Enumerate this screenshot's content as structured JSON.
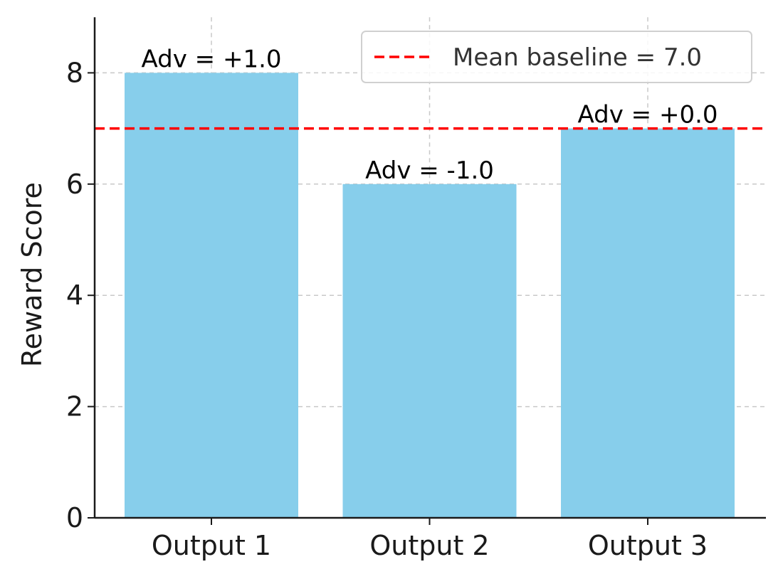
{
  "chart_data": {
    "type": "bar",
    "categories": [
      "Output 1",
      "Output 2",
      "Output 3"
    ],
    "values": [
      8,
      6,
      7
    ],
    "data_labels": [
      "Adv = +1.0",
      "Adv = -1.0",
      "Adv = +0.0"
    ],
    "title": "",
    "xlabel": "",
    "ylabel": "Reward Score",
    "ylim": [
      0,
      9
    ],
    "yticks": [
      0,
      2,
      4,
      6,
      8
    ],
    "grid": true,
    "bar_color": "#87CEEB",
    "reference_line": {
      "value": 7.0,
      "label": "Mean baseline = 7.0",
      "color": "#ff0000",
      "style": "dashed"
    },
    "legend_position": "top-right"
  }
}
